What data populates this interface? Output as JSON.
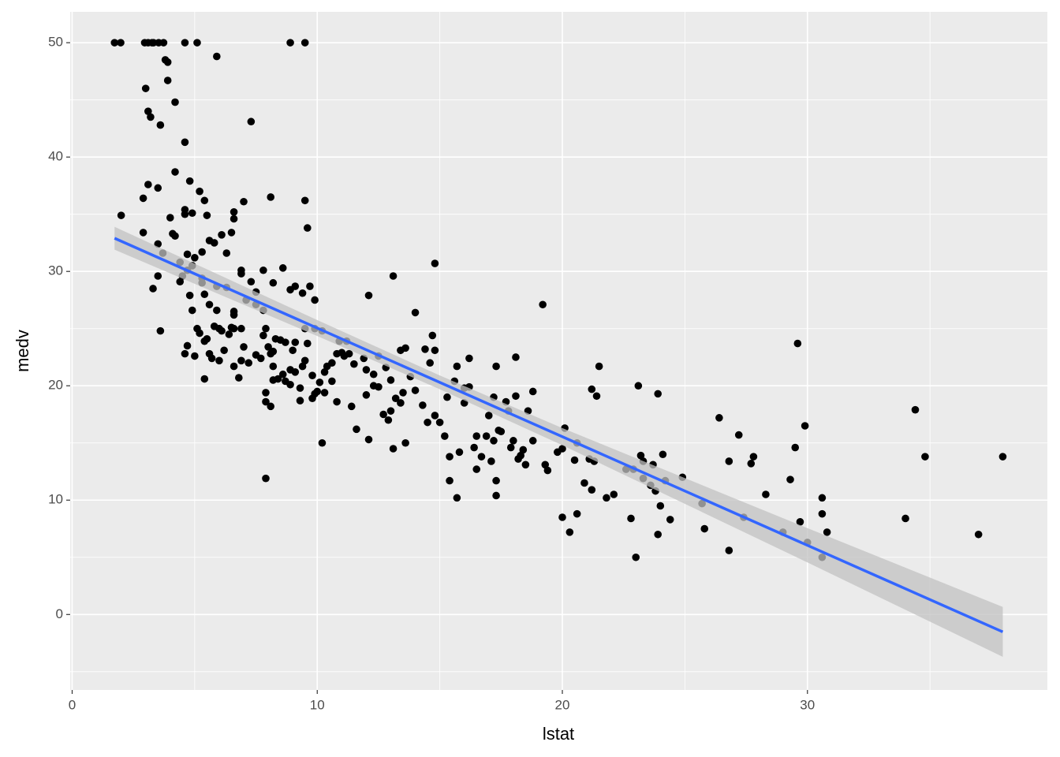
{
  "chart_data": {
    "type": "scatter",
    "x_label": "lstat",
    "y_label": "medv",
    "xlim": [
      -0.08,
      39.79
    ],
    "ylim": [
      -6.6,
      52.7
    ],
    "xticks": [
      0,
      10,
      20,
      30
    ],
    "yticks": [
      0,
      10,
      20,
      30,
      40,
      50
    ],
    "x_minor_ticks": [
      5,
      15,
      25,
      35
    ],
    "y_minor_ticks": [
      -5,
      5,
      15,
      25,
      35,
      45
    ],
    "grid": true,
    "point_color": "#000000",
    "x": [
      1.73,
      1.98,
      2.96,
      3.1,
      3.26,
      3.32,
      3.53,
      3.73,
      4.6,
      5.1,
      8.9,
      9.5,
      3.0,
      3.1,
      3.2,
      3.6,
      3.8,
      3.9,
      3.9,
      4.2,
      4.6,
      5.9,
      7.3,
      2.0,
      2.9,
      3.1,
      3.5,
      4.2,
      4.8,
      5.2,
      5.4,
      4.0,
      4.6,
      4.6,
      4.9,
      5.5,
      6.6,
      6.6,
      7.0,
      8.1,
      9.5,
      9.6,
      2.9,
      4.1,
      4.2,
      5.6,
      5.8,
      6.1,
      6.5,
      6.3,
      3.5,
      3.7,
      4.7,
      5.0,
      5.3,
      4.4,
      4.7,
      4.9,
      4.5,
      3.5,
      3.3,
      4.4,
      4.8,
      4.9,
      5.3,
      5.4,
      5.6,
      5.9,
      6.3,
      6.6,
      6.6,
      6.9,
      6.9,
      7.3,
      7.8,
      8.2,
      7.5,
      7.8,
      7.9,
      8.3,
      8.9,
      9.1,
      9.4,
      9.7,
      9.9,
      8.6,
      3.6,
      4.6,
      4.7,
      5.0,
      5.2,
      5.5,
      5.4,
      5.6,
      5.7,
      5.8,
      6.0,
      6.2,
      6.4,
      6.5,
      6.6,
      6.8,
      6.9,
      7.0,
      7.2,
      7.5,
      7.7,
      7.8,
      8.0,
      8.1,
      8.2,
      8.4,
      8.6,
      8.7,
      8.9,
      8.9,
      9.0,
      9.1,
      9.3,
      9.4,
      9.5,
      9.6,
      9.8,
      9.9,
      10.1,
      10.3,
      10.6,
      10.8,
      11.0,
      11.2,
      11.5,
      12.0,
      5.4,
      7.9,
      8.1,
      7.9,
      8.2,
      9.3,
      9.8,
      10.0,
      10.3,
      10.8,
      10.2,
      7.9,
      11.4,
      11.6,
      12.1,
      12.0,
      12.3,
      12.5,
      12.7,
      12.9,
      13.0,
      13.1,
      13.2,
      13.4,
      13.6,
      13.5,
      13.8,
      14.0,
      14.3,
      14.5,
      14.6,
      14.7,
      14.8,
      14.8,
      14.0,
      13.1,
      12.1,
      14.8,
      15.0,
      15.2,
      15.3,
      15.4,
      15.4,
      15.7,
      15.8,
      16.0,
      16.2,
      16.4,
      16.5,
      16.5,
      16.7,
      16.9,
      17.0,
      17.1,
      17.2,
      17.2,
      17.3,
      17.3,
      17.4,
      17.5,
      17.7,
      17.8,
      17.9,
      18.0,
      18.1,
      18.1,
      18.2,
      18.3,
      18.4,
      18.5,
      18.6,
      18.8,
      18.8,
      19.2,
      19.3,
      19.4,
      17.3,
      16.2,
      15.7,
      16.0,
      15.6,
      13.4,
      13.6,
      14.4,
      13.0,
      12.8,
      12.5,
      12.3,
      11.9,
      11.3,
      11.1,
      10.6,
      10.4,
      10.9,
      10.2,
      9.5,
      9.9,
      9.1,
      8.2,
      6.9,
      6.6,
      6.1,
      6.0,
      5.1,
      5.3,
      5.9,
      7.1,
      7.5,
      8.5,
      8.7,
      20.0,
      20.3,
      20.6,
      19.8,
      20.0,
      20.1,
      20.5,
      20.6,
      20.9,
      21.1,
      21.2,
      21.3,
      21.2,
      21.4,
      21.5,
      21.8,
      22.1,
      22.6,
      22.8,
      22.9,
      23.0,
      23.1,
      23.2,
      23.3,
      23.3,
      23.6,
      23.7,
      23.8,
      23.9,
      23.9,
      24.0,
      24.1,
      24.2,
      24.4,
      24.9,
      25.7,
      25.8,
      26.4,
      26.8,
      26.8,
      27.2,
      27.4,
      27.7,
      27.8,
      28.3,
      29.0,
      29.3,
      29.5,
      29.6,
      29.7,
      29.9,
      30.0,
      30.6,
      30.6,
      30.6,
      30.8,
      34.0,
      34.4,
      34.8,
      36.98,
      37.97
    ],
    "values": [
      50,
      50,
      50,
      50,
      50,
      50,
      50,
      50,
      50,
      50,
      50,
      50,
      46.0,
      44.0,
      43.5,
      42.8,
      48.5,
      48.3,
      46.7,
      44.8,
      41.3,
      48.8,
      43.1,
      34.9,
      36.4,
      37.6,
      37.3,
      38.7,
      37.9,
      37.0,
      36.2,
      34.7,
      35.0,
      35.4,
      35.1,
      34.9,
      35.2,
      34.6,
      36.1,
      36.5,
      36.2,
      33.8,
      33.4,
      33.3,
      33.1,
      32.7,
      32.5,
      33.2,
      33.4,
      31.6,
      32.4,
      31.6,
      31.5,
      31.2,
      31.7,
      30.8,
      30.1,
      30.5,
      29.6,
      29.6,
      28.5,
      29.1,
      27.9,
      26.6,
      29.4,
      28.0,
      27.1,
      26.6,
      28.6,
      26.5,
      26.2,
      30.1,
      29.8,
      29.1,
      30.1,
      29.0,
      28.2,
      26.6,
      25.0,
      24.1,
      28.4,
      28.7,
      28.1,
      28.7,
      27.5,
      30.3,
      24.8,
      22.8,
      23.5,
      22.6,
      24.6,
      24.1,
      23.9,
      22.8,
      22.4,
      25.2,
      22.2,
      23.1,
      24.5,
      25.1,
      21.7,
      20.7,
      22.2,
      23.4,
      22.0,
      22.7,
      22.4,
      24.4,
      23.4,
      22.8,
      21.7,
      20.6,
      21.0,
      20.4,
      20.1,
      21.4,
      23.1,
      21.2,
      19.8,
      21.7,
      22.2,
      23.7,
      20.9,
      19.3,
      20.3,
      21.2,
      22.0,
      22.8,
      22.9,
      23.9,
      21.9,
      21.4,
      20.6,
      18.6,
      18.2,
      19.4,
      20.5,
      18.7,
      18.9,
      19.5,
      19.4,
      18.6,
      15.0,
      11.9,
      18.2,
      16.2,
      15.3,
      19.2,
      20.0,
      19.9,
      17.5,
      17.0,
      17.8,
      14.5,
      18.9,
      18.5,
      15.0,
      19.4,
      20.8,
      19.6,
      18.3,
      16.8,
      22.0,
      24.4,
      23.1,
      30.7,
      26.4,
      29.6,
      27.9,
      17.4,
      16.8,
      15.6,
      19.0,
      13.8,
      11.7,
      10.2,
      14.2,
      18.5,
      19.9,
      14.6,
      15.6,
      12.7,
      13.8,
      15.6,
      17.4,
      13.4,
      15.2,
      19.0,
      11.7,
      10.4,
      16.1,
      16.0,
      18.6,
      17.8,
      14.6,
      15.2,
      19.1,
      22.5,
      13.6,
      13.9,
      14.4,
      13.1,
      17.8,
      19.5,
      15.2,
      27.1,
      13.1,
      12.6,
      21.7,
      22.4,
      21.7,
      19.8,
      20.4,
      23.1,
      23.3,
      23.2,
      20.5,
      21.6,
      22.6,
      21.0,
      22.4,
      22.8,
      22.6,
      20.4,
      21.7,
      23.9,
      24.8,
      25.0,
      25.0,
      23.8,
      23.0,
      25.0,
      25.0,
      24.8,
      25.0,
      25.0,
      29.0,
      28.7,
      27.5,
      27.1,
      24.0,
      23.8,
      8.5,
      7.2,
      8.8,
      14.2,
      14.5,
      16.3,
      13.5,
      15.0,
      11.5,
      13.6,
      10.9,
      13.4,
      19.7,
      19.1,
      21.7,
      10.2,
      10.5,
      12.7,
      8.4,
      12.7,
      5.0,
      20.0,
      13.9,
      13.4,
      11.9,
      11.3,
      13.1,
      10.8,
      7.0,
      19.3,
      9.5,
      14.0,
      11.7,
      8.3,
      12.0,
      9.7,
      7.5,
      17.2,
      5.6,
      13.4,
      15.7,
      8.5,
      13.2,
      13.8,
      10.5,
      7.2,
      11.8,
      14.6,
      23.7,
      8.1,
      16.5,
      6.3,
      5.0,
      10.2,
      8.8,
      7.2,
      8.4,
      17.9,
      13.8,
      7.0,
      13.8
    ],
    "fit": {
      "color": "#3366ff",
      "x": [
        1.73,
        37.97
      ],
      "values": [
        32.9,
        -1.52
      ]
    },
    "ci": {
      "color": "#c2c2c2",
      "x": [
        1.73,
        10,
        15,
        20,
        30,
        37.97
      ],
      "lower": [
        31.9,
        24.35,
        19.7,
        14.8,
        4.55,
        -3.7
      ],
      "upper": [
        33.9,
        25.75,
        20.9,
        16.3,
        7.55,
        0.66
      ]
    }
  }
}
